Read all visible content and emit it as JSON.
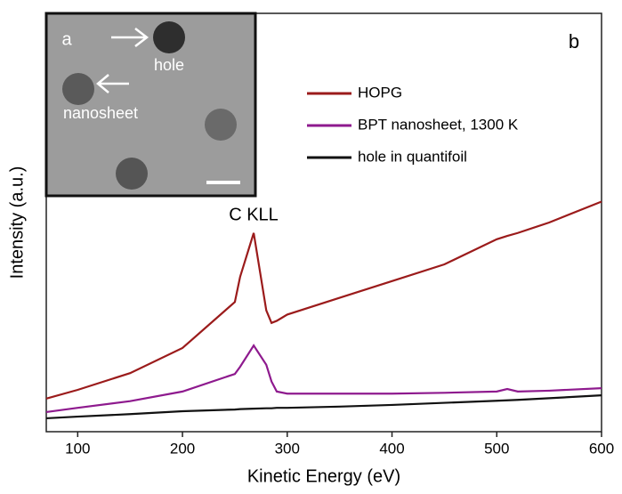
{
  "chart_data": {
    "type": "line",
    "x_label": "Kinetic Energy (eV)",
    "y_label": "Intensity (a.u.)",
    "annotation": "C KLL",
    "panel_label": "b",
    "inset": {
      "panel_label": "a",
      "labels": [
        "hole",
        "nanosheet"
      ]
    },
    "x": [
      70,
      100,
      150,
      200,
      250,
      255,
      268,
      280,
      285,
      290,
      300,
      350,
      400,
      450,
      500,
      510,
      520,
      550,
      600
    ],
    "series": [
      {
        "name": "HOPG",
        "color": "#9b1b1b",
        "values": [
          7.9,
          10,
          14,
          20,
          31,
          37,
          47.5,
          29,
          26,
          26.5,
          28,
          32,
          36,
          40,
          46,
          46.8,
          47.5,
          50,
          55
        ]
      },
      {
        "name": "BPT nanosheet, 1300 K",
        "color": "#8e1a8e",
        "values": [
          4.7,
          5.7,
          7.3,
          9.6,
          13.8,
          15.5,
          20.6,
          16,
          12,
          9.6,
          9.1,
          9.1,
          9.1,
          9.3,
          9.6,
          10.2,
          9.6,
          9.8,
          10.4
        ]
      },
      {
        "name": "hole in quantifoil",
        "color": "#111111",
        "values": [
          3.2,
          3.6,
          4.2,
          4.9,
          5.3,
          5.4,
          5.5,
          5.6,
          5.6,
          5.7,
          5.7,
          6.0,
          6.4,
          6.9,
          7.4,
          7.5,
          7.6,
          8.0,
          8.7
        ]
      }
    ],
    "xlim": [
      70,
      600
    ],
    "xticks": [
      100,
      200,
      300,
      400,
      500,
      600
    ],
    "ylim": [
      0,
      100
    ]
  }
}
